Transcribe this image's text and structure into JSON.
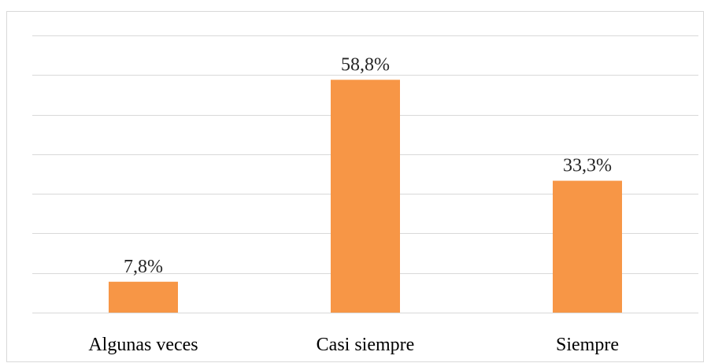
{
  "chart_data": {
    "type": "bar",
    "title": "",
    "xlabel": "",
    "ylabel": "",
    "categories": [
      "Algunas veces",
      "Casi siempre",
      "Siempre"
    ],
    "values": [
      7.8,
      58.8,
      33.3
    ],
    "value_labels": [
      "7,8%",
      "58,8%",
      "33,3%"
    ],
    "ylim": [
      0,
      70
    ],
    "gridlines": [
      0,
      10,
      20,
      30,
      40,
      50,
      60,
      70
    ],
    "grid": true,
    "legend": "none",
    "colors": {
      "bar": "#f79646",
      "grid": "#d9d9d9"
    }
  }
}
